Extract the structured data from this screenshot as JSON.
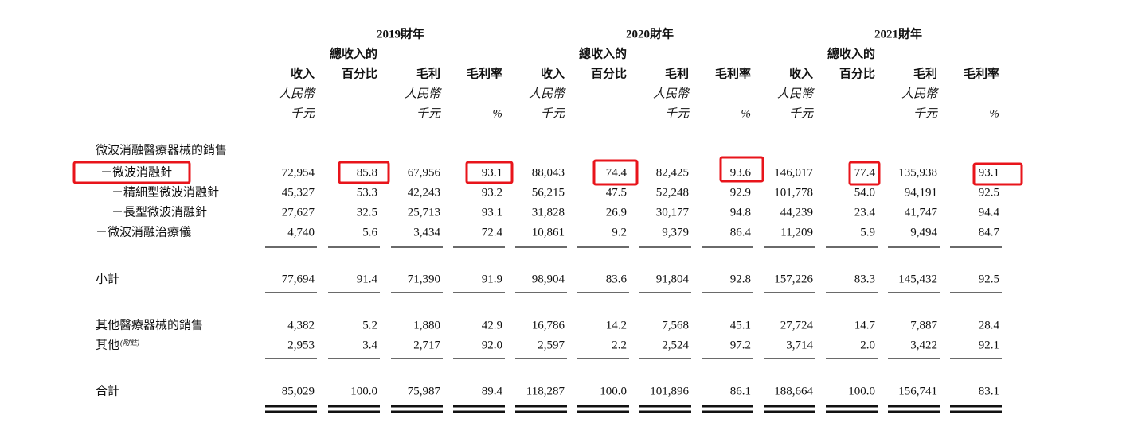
{
  "header": {
    "years": [
      {
        "label": "2019財年",
        "columns": [
          {
            "title": "收入",
            "unit": "人民幣",
            "unit2": "千元"
          },
          {
            "title_top": "總收入的",
            "title": "百分比"
          },
          {
            "title": "毛利",
            "unit": "人民幣",
            "unit2": "千元"
          },
          {
            "title": "毛利率",
            "unit2": "%"
          }
        ]
      },
      {
        "label": "2020財年",
        "columns": [
          {
            "title": "收入",
            "unit": "人民幣",
            "unit2": "千元"
          },
          {
            "title_top": "總收入的",
            "title": "百分比"
          },
          {
            "title": "毛利",
            "unit": "人民幣",
            "unit2": "千元"
          },
          {
            "title": "毛利率",
            "unit2": "%"
          }
        ]
      },
      {
        "label": "2021財年",
        "columns": [
          {
            "title": "收入",
            "unit": "人民幣",
            "unit2": "千元"
          },
          {
            "title_top": "總收入的",
            "title": "百分比"
          },
          {
            "title": "毛利",
            "unit": "人民幣",
            "unit2": "千元"
          },
          {
            "title": "毛利率",
            "unit2": "%"
          }
        ]
      }
    ]
  },
  "table": {
    "rows": [
      {
        "label": "微波消融醫療器械的銷售"
      },
      {
        "label": "－微波消融針",
        "values": [
          "72,954",
          "85.8",
          "67,956",
          "93.1",
          "88,043",
          "74.4",
          "82,425",
          "93.6",
          "146,017",
          "77.4",
          "135,938",
          "93.1"
        ]
      },
      {
        "label": "－精細型微波消融針",
        "values": [
          "45,327",
          "53.3",
          "42,243",
          "93.2",
          "56,215",
          "47.5",
          "52,248",
          "92.9",
          "101,778",
          "54.0",
          "94,191",
          "92.5"
        ]
      },
      {
        "label": "－長型微波消融針",
        "values": [
          "27,627",
          "32.5",
          "25,713",
          "93.1",
          "31,828",
          "26.9",
          "30,177",
          "94.8",
          "44,239",
          "23.4",
          "41,747",
          "94.4"
        ]
      },
      {
        "label": "－微波消融治療儀",
        "values": [
          "4,740",
          "5.6",
          "3,434",
          "72.4",
          "10,861",
          "9.2",
          "9,379",
          "86.4",
          "11,209",
          "5.9",
          "9,494",
          "84.7"
        ]
      },
      {
        "label": "小計",
        "values": [
          "77,694",
          "91.4",
          "71,390",
          "91.9",
          "98,904",
          "83.6",
          "91,804",
          "92.8",
          "157,226",
          "83.3",
          "145,432",
          "92.5"
        ]
      },
      {
        "label": "其他醫療器械的銷售",
        "values": [
          "4,382",
          "5.2",
          "1,880",
          "42.9",
          "16,786",
          "14.2",
          "7,568",
          "45.1",
          "27,724",
          "14.7",
          "7,887",
          "28.4"
        ]
      },
      {
        "label": "其他",
        "note": "(附註)",
        "values": [
          "2,953",
          "3.4",
          "2,717",
          "92.0",
          "2,597",
          "2.2",
          "2,524",
          "97.2",
          "3,714",
          "2.0",
          "3,422",
          "92.1"
        ]
      },
      {
        "label": "合計",
        "values": [
          "85,029",
          "100.0",
          "75,987",
          "89.4",
          "118,287",
          "100.0",
          "101,896",
          "86.1",
          "188,664",
          "100.0",
          "156,741",
          "83.1"
        ]
      }
    ]
  }
}
